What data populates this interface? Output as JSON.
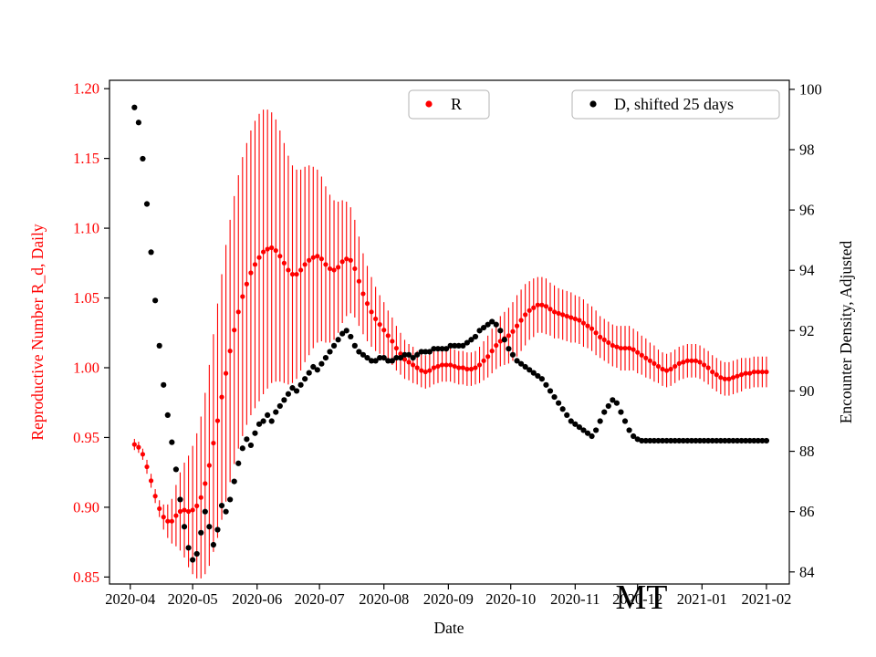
{
  "chart_data": {
    "type": "scatter",
    "title": "",
    "xlabel": "Date",
    "watermark": "MT",
    "x_axis": {
      "epoch": "2020-04-01",
      "range_days": [
        -10,
        317
      ],
      "ticks": [
        {
          "label": "2020-04",
          "day": 0
        },
        {
          "label": "2020-05",
          "day": 30
        },
        {
          "label": "2020-06",
          "day": 61
        },
        {
          "label": "2020-07",
          "day": 91
        },
        {
          "label": "2020-08",
          "day": 122
        },
        {
          "label": "2020-09",
          "day": 153
        },
        {
          "label": "2020-10",
          "day": 183
        },
        {
          "label": "2020-11",
          "day": 214
        },
        {
          "label": "2020-12",
          "day": 244
        },
        {
          "label": "2021-01",
          "day": 275
        },
        {
          "label": "2021-02",
          "day": 306
        }
      ]
    },
    "y_left": {
      "label": "Reproductive Number R_d, Daily",
      "color": "#ff0000",
      "range": [
        0.845,
        1.206
      ],
      "tick_labels": [
        "0.85",
        "0.90",
        "0.95",
        "1.00",
        "1.05",
        "1.10",
        "1.15",
        "1.20"
      ]
    },
    "y_right": {
      "label": "Encounter Density, Adjusted",
      "color": "#000000",
      "range": [
        83.6,
        100.3
      ],
      "tick_labels": [
        "84",
        "86",
        "88",
        "90",
        "92",
        "94",
        "96",
        "98",
        "100"
      ]
    },
    "legend": [
      {
        "label": "R",
        "color": "#ff0000"
      },
      {
        "label": "D, shifted 25 days",
        "color": "#000000"
      }
    ],
    "series": [
      {
        "name": "R",
        "axis": "left",
        "color": "#ff0000",
        "marker": "circle",
        "start_day": 2,
        "step_days": 2,
        "values": [
          0.945,
          0.943,
          0.938,
          0.929,
          0.919,
          0.908,
          0.899,
          0.893,
          0.89,
          0.89,
          0.894,
          0.897,
          0.898,
          0.897,
          0.898,
          0.901,
          0.907,
          0.917,
          0.93,
          0.946,
          0.962,
          0.979,
          0.996,
          1.012,
          1.027,
          1.04,
          1.051,
          1.06,
          1.068,
          1.074,
          1.079,
          1.083,
          1.085,
          1.086,
          1.084,
          1.08,
          1.075,
          1.07,
          1.067,
          1.067,
          1.07,
          1.074,
          1.077,
          1.079,
          1.08,
          1.078,
          1.074,
          1.071,
          1.07,
          1.072,
          1.076,
          1.078,
          1.077,
          1.071,
          1.062,
          1.053,
          1.046,
          1.04,
          1.035,
          1.031,
          1.027,
          1.023,
          1.019,
          1.014,
          1.01,
          1.006,
          1.004,
          1.002,
          1.0,
          0.998,
          0.997,
          0.998,
          1.0,
          1.001,
          1.002,
          1.002,
          1.002,
          1.001,
          1.0,
          1.0,
          0.999,
          0.999,
          1.0,
          1.002,
          1.005,
          1.008,
          1.012,
          1.016,
          1.019,
          1.021,
          1.023,
          1.026,
          1.03,
          1.034,
          1.038,
          1.041,
          1.043,
          1.045,
          1.045,
          1.044,
          1.042,
          1.04,
          1.039,
          1.038,
          1.037,
          1.036,
          1.035,
          1.034,
          1.032,
          1.03,
          1.028,
          1.025,
          1.022,
          1.02,
          1.018,
          1.016,
          1.015,
          1.014,
          1.014,
          1.014,
          1.013,
          1.011,
          1.009,
          1.007,
          1.005,
          1.003,
          1.001,
          0.999,
          0.998,
          0.999,
          1.001,
          1.003,
          1.004,
          1.005,
          1.005,
          1.005,
          1.004,
          1.002,
          1.0,
          0.997,
          0.995,
          0.993,
          0.992,
          0.992,
          0.993,
          0.994,
          0.995,
          0.996,
          0.996,
          0.997,
          0.997,
          0.997,
          0.997
        ],
        "errors": [
          0.004,
          0.004,
          0.004,
          0.005,
          0.005,
          0.005,
          0.006,
          0.009,
          0.012,
          0.016,
          0.022,
          0.028,
          0.034,
          0.04,
          0.046,
          0.052,
          0.058,
          0.065,
          0.072,
          0.078,
          0.084,
          0.088,
          0.092,
          0.094,
          0.096,
          0.098,
          0.1,
          0.101,
          0.102,
          0.103,
          0.103,
          0.102,
          0.1,
          0.097,
          0.094,
          0.09,
          0.086,
          0.082,
          0.078,
          0.075,
          0.072,
          0.07,
          0.068,
          0.065,
          0.062,
          0.059,
          0.056,
          0.053,
          0.05,
          0.047,
          0.044,
          0.041,
          0.038,
          0.035,
          0.032,
          0.029,
          0.027,
          0.025,
          0.023,
          0.021,
          0.02,
          0.018,
          0.017,
          0.016,
          0.015,
          0.014,
          0.013,
          0.013,
          0.012,
          0.012,
          0.012,
          0.012,
          0.012,
          0.012,
          0.012,
          0.012,
          0.012,
          0.012,
          0.012,
          0.012,
          0.012,
          0.012,
          0.012,
          0.013,
          0.014,
          0.015,
          0.016,
          0.017,
          0.018,
          0.019,
          0.02,
          0.021,
          0.022,
          0.022,
          0.022,
          0.021,
          0.021,
          0.02,
          0.02,
          0.02,
          0.019,
          0.019,
          0.018,
          0.018,
          0.018,
          0.018,
          0.017,
          0.017,
          0.017,
          0.016,
          0.016,
          0.016,
          0.015,
          0.015,
          0.015,
          0.015,
          0.015,
          0.016,
          0.016,
          0.016,
          0.015,
          0.015,
          0.014,
          0.014,
          0.013,
          0.013,
          0.012,
          0.012,
          0.012,
          0.012,
          0.012,
          0.012,
          0.012,
          0.012,
          0.012,
          0.012,
          0.012,
          0.012,
          0.012,
          0.012,
          0.012,
          0.012,
          0.012,
          0.012,
          0.012,
          0.012,
          0.012,
          0.011,
          0.011,
          0.011,
          0.011,
          0.011,
          0.011
        ]
      },
      {
        "name": "D, shifted 25 days",
        "axis": "right",
        "color": "#000000",
        "marker": "circle",
        "start_day": 2,
        "step_days": 2,
        "values": [
          99.4,
          98.9,
          97.7,
          96.2,
          94.6,
          93.0,
          91.5,
          90.2,
          89.2,
          88.3,
          87.4,
          86.4,
          85.5,
          84.8,
          84.4,
          84.6,
          85.3,
          86.0,
          85.5,
          84.9,
          85.4,
          86.2,
          86.0,
          86.4,
          87.0,
          87.6,
          88.1,
          88.4,
          88.2,
          88.6,
          88.9,
          89.0,
          89.2,
          89.0,
          89.3,
          89.5,
          89.7,
          89.9,
          90.1,
          90.0,
          90.2,
          90.4,
          90.6,
          90.8,
          90.7,
          90.9,
          91.1,
          91.3,
          91.5,
          91.7,
          91.9,
          92.0,
          91.8,
          91.5,
          91.3,
          91.2,
          91.1,
          91.0,
          91.0,
          91.1,
          91.1,
          91.0,
          91.0,
          91.1,
          91.1,
          91.2,
          91.2,
          91.1,
          91.2,
          91.3,
          91.3,
          91.3,
          91.4,
          91.4,
          91.4,
          91.4,
          91.5,
          91.5,
          91.5,
          91.5,
          91.6,
          91.7,
          91.8,
          92.0,
          92.1,
          92.2,
          92.3,
          92.2,
          92.0,
          91.7,
          91.4,
          91.2,
          91.0,
          90.9,
          90.8,
          90.7,
          90.6,
          90.5,
          90.4,
          90.2,
          90.0,
          89.8,
          89.6,
          89.4,
          89.2,
          89.0,
          88.9,
          88.8,
          88.7,
          88.6,
          88.5,
          88.7,
          89.0,
          89.3,
          89.5,
          89.7,
          89.6,
          89.3,
          89.0,
          88.7,
          88.5,
          88.4,
          88.35,
          88.35,
          88.35,
          88.35,
          88.35,
          88.35,
          88.35,
          88.35,
          88.35,
          88.35,
          88.35,
          88.35,
          88.35,
          88.35,
          88.35,
          88.35,
          88.35,
          88.35,
          88.35,
          88.35,
          88.35,
          88.35,
          88.35,
          88.35,
          88.35,
          88.35,
          88.35,
          88.35,
          88.35,
          88.35,
          88.35
        ]
      }
    ]
  }
}
